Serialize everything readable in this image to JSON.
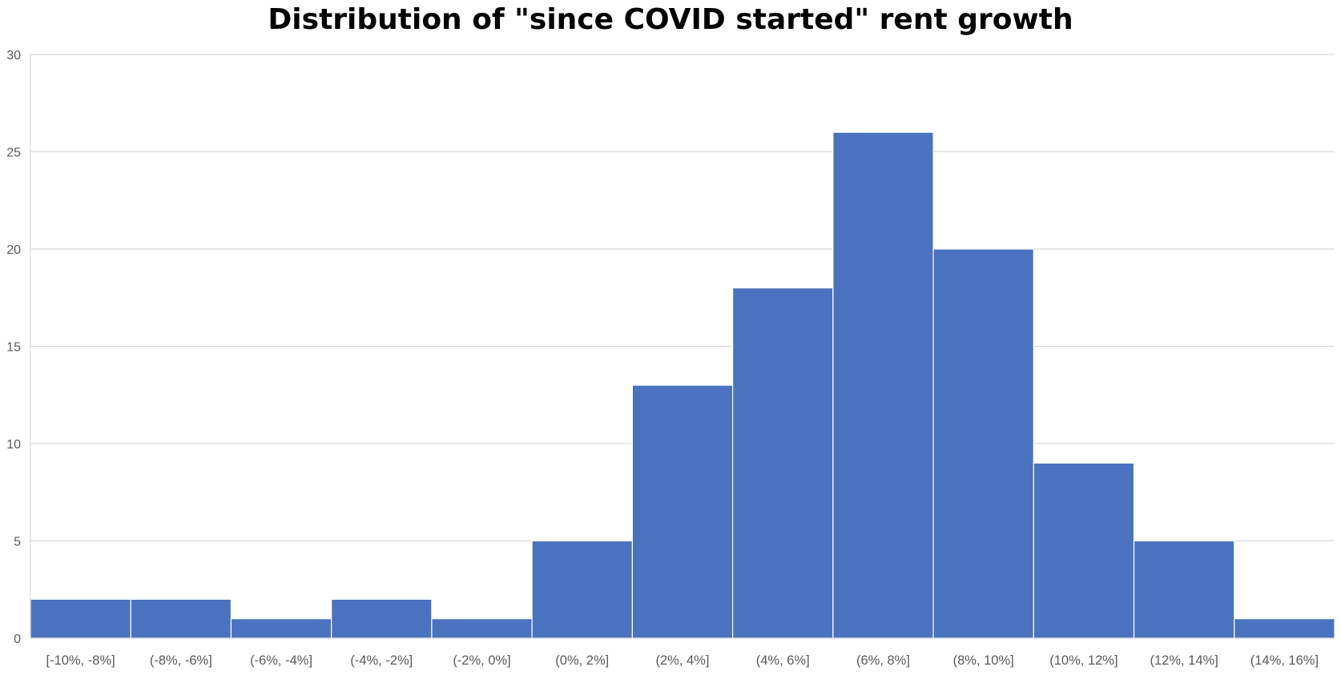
{
  "chart_data": {
    "type": "bar",
    "title": "Distribution of \"since COVID started\" rent growth",
    "xlabel": "",
    "ylabel": "",
    "categories": [
      "[-10%, -8%]",
      "(-8%, -6%]",
      "(-6%, -4%]",
      "(-4%, -2%]",
      "(-2%, 0%]",
      "(0%, 2%]",
      "(2%, 4%]",
      "(4%, 6%]",
      "(6%, 8%]",
      "(8%, 10%]",
      "(10%, 12%]",
      "(12%, 14%]",
      "(14%, 16%]"
    ],
    "values": [
      2,
      2,
      1,
      2,
      1,
      5,
      13,
      18,
      26,
      20,
      9,
      5,
      1
    ],
    "ylim": [
      0,
      30
    ],
    "yticks": [
      0,
      5,
      10,
      15,
      20,
      25,
      30
    ],
    "grid": true,
    "legend": "none",
    "bar_color": "#4a72bf",
    "grid_color": "#d9d9d9",
    "tick_color": "#595959"
  }
}
